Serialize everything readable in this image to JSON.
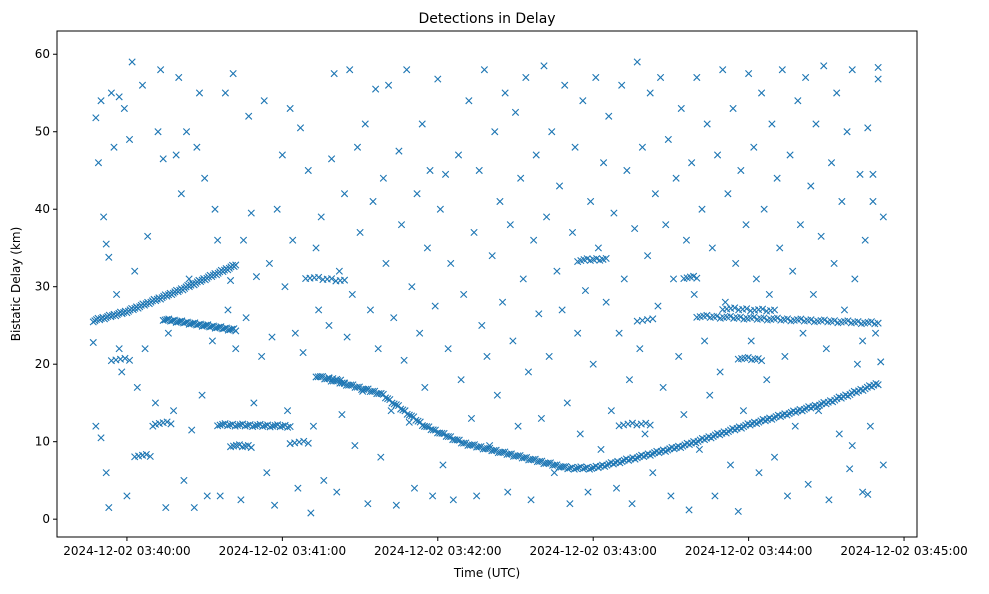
{
  "chart_data": {
    "type": "scatter",
    "title": "Detections in Delay",
    "xlabel": "Time (UTC)",
    "ylabel": "Bistatic Delay (km)",
    "x_units": "seconds after 2024-12-02 03:40:00",
    "xlim": [
      -27,
      305
    ],
    "ylim": [
      -2.3,
      63
    ],
    "grid": false,
    "marker": "x",
    "color": "#1f77b4",
    "x_ticks": [
      {
        "value": 0,
        "label": "2024-12-02 03:40:00"
      },
      {
        "value": 60,
        "label": "2024-12-02 03:41:00"
      },
      {
        "value": 120,
        "label": "2024-12-02 03:42:00"
      },
      {
        "value": 180,
        "label": "2024-12-02 03:43:00"
      },
      {
        "value": 240,
        "label": "2024-12-02 03:44:00"
      },
      {
        "value": 300,
        "label": "2024-12-02 03:45:00"
      }
    ],
    "y_ticks": [
      {
        "value": 0,
        "label": "0"
      },
      {
        "value": 10,
        "label": "10"
      },
      {
        "value": 20,
        "label": "20"
      },
      {
        "value": 30,
        "label": "30"
      },
      {
        "value": 40,
        "label": "40"
      },
      {
        "value": 50,
        "label": "50"
      },
      {
        "value": 60,
        "label": "60"
      }
    ],
    "tracks": [
      {
        "anchors": [
          [
            -13,
            25.6
          ],
          [
            0,
            26.8
          ],
          [
            20,
            29.5
          ],
          [
            42,
            32.8
          ]
        ],
        "count": 90
      },
      {
        "anchors": [
          [
            73,
            18.5
          ],
          [
            98,
            16.2
          ],
          [
            115,
            12
          ],
          [
            130,
            9.8
          ],
          [
            150,
            8.2
          ],
          [
            170,
            6.6
          ],
          [
            180,
            6.6
          ],
          [
            195,
            7.8
          ],
          [
            215,
            9.5
          ],
          [
            240,
            12.2
          ],
          [
            270,
            15
          ],
          [
            290,
            17.5
          ]
        ],
        "count": 260
      },
      {
        "anchors": [
          [
            14,
            25.8
          ],
          [
            42,
            24.4
          ]
        ],
        "count": 40
      },
      {
        "anchors": [
          [
            35,
            12.2
          ],
          [
            63,
            12
          ]
        ],
        "count": 30
      },
      {
        "anchors": [
          [
            220,
            26.2
          ],
          [
            290,
            25.3
          ]
        ],
        "count": 55
      },
      {
        "anchors": [
          [
            230,
            27.2
          ],
          [
            250,
            26.9
          ]
        ],
        "count": 14
      },
      {
        "anchors": [
          [
            236,
            20.8
          ],
          [
            245,
            20.6
          ]
        ],
        "count": 8
      },
      {
        "anchors": [
          [
            174,
            33.4
          ],
          [
            185,
            33.6
          ]
        ],
        "count": 10
      },
      {
        "anchors": [
          [
            69,
            31.2
          ],
          [
            84,
            30.8
          ]
        ],
        "count": 10
      },
      {
        "anchors": [
          [
            40,
            9.5
          ],
          [
            48,
            9.4
          ]
        ],
        "count": 8
      },
      {
        "anchors": [
          [
            3,
            8.2
          ],
          [
            9,
            8.2
          ]
        ],
        "count": 5
      },
      {
        "anchors": [
          [
            11,
            12.4
          ],
          [
            17,
            12.4
          ]
        ],
        "count": 5
      },
      {
        "anchors": [
          [
            -6,
            20.6
          ],
          [
            1,
            20.6
          ]
        ],
        "count": 5
      },
      {
        "anchors": [
          [
            63,
            9.9
          ],
          [
            70,
            9.9
          ]
        ],
        "count": 5
      },
      {
        "anchors": [
          [
            197,
            25.7
          ],
          [
            203,
            25.7
          ]
        ],
        "count": 4
      },
      {
        "anchors": [
          [
            190,
            12.2
          ],
          [
            202,
            12.3
          ]
        ],
        "count": 8
      },
      {
        "anchors": [
          [
            215,
            31.2
          ],
          [
            220,
            31.2
          ]
        ],
        "count": 5
      },
      {
        "anchors": [
          [
            78,
            18.4
          ],
          [
            84,
            17.6
          ]
        ],
        "count": 5
      }
    ],
    "points": [
      [
        -12,
        51.8
      ],
      [
        -11,
        46
      ],
      [
        -10,
        54
      ],
      [
        -9,
        39
      ],
      [
        -8,
        35.5
      ],
      [
        -7,
        33.8
      ],
      [
        -6,
        55
      ],
      [
        -4,
        29
      ],
      [
        -3,
        22
      ],
      [
        -2,
        19
      ],
      [
        -13,
        22.8
      ],
      [
        -12,
        12
      ],
      [
        -10,
        10.5
      ],
      [
        -8,
        6
      ],
      [
        -7,
        1.5
      ],
      [
        -5,
        48
      ],
      [
        -3,
        54.5
      ],
      [
        -1,
        53
      ],
      [
        0,
        3
      ],
      [
        1,
        49
      ],
      [
        2,
        59
      ],
      [
        3,
        32
      ],
      [
        4,
        17
      ],
      [
        6,
        56
      ],
      [
        7,
        22
      ],
      [
        8,
        36.5
      ],
      [
        10,
        12
      ],
      [
        11,
        15
      ],
      [
        12,
        50
      ],
      [
        13,
        58
      ],
      [
        14,
        46.5
      ],
      [
        15,
        1.5
      ],
      [
        16,
        24
      ],
      [
        18,
        14
      ],
      [
        19,
        47
      ],
      [
        20,
        57
      ],
      [
        21,
        42
      ],
      [
        22,
        5
      ],
      [
        23,
        50
      ],
      [
        24,
        31
      ],
      [
        25,
        11.5
      ],
      [
        26,
        1.5
      ],
      [
        27,
        48
      ],
      [
        28,
        55
      ],
      [
        29,
        16
      ],
      [
        30,
        44
      ],
      [
        31,
        3
      ],
      [
        33,
        23
      ],
      [
        34,
        40
      ],
      [
        35,
        36
      ],
      [
        36,
        3
      ],
      [
        38,
        55
      ],
      [
        39,
        27
      ],
      [
        40,
        30.8
      ],
      [
        41,
        57.5
      ],
      [
        42,
        22
      ],
      [
        44,
        2.5
      ],
      [
        45,
        36
      ],
      [
        46,
        26
      ],
      [
        47,
        52
      ],
      [
        48,
        39.5
      ],
      [
        49,
        15
      ],
      [
        50,
        31.3
      ],
      [
        52,
        21
      ],
      [
        53,
        54
      ],
      [
        54,
        6
      ],
      [
        55,
        33
      ],
      [
        56,
        23.5
      ],
      [
        57,
        1.8
      ],
      [
        58,
        40
      ],
      [
        60,
        47
      ],
      [
        61,
        30
      ],
      [
        62,
        14
      ],
      [
        63,
        53
      ],
      [
        64,
        36
      ],
      [
        65,
        24
      ],
      [
        66,
        4
      ],
      [
        67,
        50.5
      ],
      [
        68,
        21.5
      ],
      [
        70,
        45
      ],
      [
        71,
        0.8
      ],
      [
        72,
        12
      ],
      [
        73,
        35
      ],
      [
        74,
        27
      ],
      [
        75,
        39
      ],
      [
        76,
        5
      ],
      [
        78,
        25
      ],
      [
        79,
        46.5
      ],
      [
        80,
        57.5
      ],
      [
        81,
        3.5
      ],
      [
        82,
        32
      ],
      [
        83,
        13.5
      ],
      [
        84,
        42
      ],
      [
        85,
        23.5
      ],
      [
        86,
        58
      ],
      [
        87,
        29
      ],
      [
        88,
        9.5
      ],
      [
        89,
        48
      ],
      [
        90,
        37
      ],
      [
        91,
        16.5
      ],
      [
        92,
        51
      ],
      [
        93,
        2
      ],
      [
        94,
        27
      ],
      [
        95,
        41
      ],
      [
        96,
        55.5
      ],
      [
        97,
        22
      ],
      [
        98,
        8
      ],
      [
        99,
        44
      ],
      [
        100,
        33
      ],
      [
        101,
        56
      ],
      [
        102,
        14
      ],
      [
        103,
        26
      ],
      [
        104,
        1.8
      ],
      [
        105,
        47.5
      ],
      [
        106,
        38
      ],
      [
        107,
        20.5
      ],
      [
        108,
        58
      ],
      [
        109,
        12.5
      ],
      [
        110,
        30
      ],
      [
        111,
        4
      ],
      [
        112,
        42
      ],
      [
        113,
        24
      ],
      [
        114,
        51
      ],
      [
        115,
        17
      ],
      [
        116,
        35
      ],
      [
        117,
        45
      ],
      [
        118,
        3
      ],
      [
        119,
        27.5
      ],
      [
        120,
        56.8
      ],
      [
        121,
        40
      ],
      [
        122,
        7
      ],
      [
        123,
        44.5
      ],
      [
        124,
        22
      ],
      [
        125,
        33
      ],
      [
        126,
        2.5
      ],
      [
        128,
        47
      ],
      [
        129,
        18
      ],
      [
        130,
        29
      ],
      [
        132,
        54
      ],
      [
        133,
        13
      ],
      [
        134,
        37
      ],
      [
        135,
        3
      ],
      [
        136,
        45
      ],
      [
        137,
        25
      ],
      [
        138,
        58
      ],
      [
        139,
        21
      ],
      [
        140,
        9.5
      ],
      [
        141,
        34
      ],
      [
        142,
        50
      ],
      [
        143,
        16
      ],
      [
        144,
        41
      ],
      [
        145,
        28
      ],
      [
        146,
        55
      ],
      [
        147,
        3.5
      ],
      [
        148,
        38
      ],
      [
        149,
        23
      ],
      [
        150,
        52.5
      ],
      [
        151,
        12
      ],
      [
        152,
        44
      ],
      [
        153,
        31
      ],
      [
        154,
        57
      ],
      [
        155,
        19
      ],
      [
        156,
        2.5
      ],
      [
        157,
        36
      ],
      [
        158,
        47
      ],
      [
        159,
        26.5
      ],
      [
        160,
        13
      ],
      [
        161,
        58.5
      ],
      [
        162,
        39
      ],
      [
        163,
        21
      ],
      [
        164,
        50
      ],
      [
        165,
        6
      ],
      [
        166,
        32
      ],
      [
        167,
        43
      ],
      [
        168,
        27
      ],
      [
        169,
        56
      ],
      [
        170,
        15
      ],
      [
        171,
        2
      ],
      [
        172,
        37
      ],
      [
        173,
        48
      ],
      [
        174,
        24
      ],
      [
        175,
        11
      ],
      [
        176,
        54
      ],
      [
        177,
        29.5
      ],
      [
        178,
        3.5
      ],
      [
        179,
        41
      ],
      [
        180,
        20
      ],
      [
        181,
        57
      ],
      [
        182,
        35
      ],
      [
        183,
        9
      ],
      [
        184,
        46
      ],
      [
        185,
        28
      ],
      [
        186,
        52
      ],
      [
        187,
        14
      ],
      [
        188,
        39.5
      ],
      [
        189,
        4
      ],
      [
        190,
        24
      ],
      [
        191,
        56
      ],
      [
        192,
        31
      ],
      [
        193,
        45
      ],
      [
        194,
        18
      ],
      [
        195,
        2
      ],
      [
        196,
        37.5
      ],
      [
        197,
        59
      ],
      [
        198,
        22
      ],
      [
        199,
        48
      ],
      [
        200,
        11
      ],
      [
        201,
        34
      ],
      [
        202,
        55
      ],
      [
        203,
        6
      ],
      [
        204,
        42
      ],
      [
        205,
        27.5
      ],
      [
        206,
        57
      ],
      [
        207,
        17
      ],
      [
        208,
        38
      ],
      [
        209,
        49
      ],
      [
        210,
        3
      ],
      [
        211,
        31
      ],
      [
        212,
        44
      ],
      [
        213,
        21
      ],
      [
        214,
        53
      ],
      [
        215,
        13.5
      ],
      [
        216,
        36
      ],
      [
        217,
        1.2
      ],
      [
        218,
        46
      ],
      [
        219,
        29
      ],
      [
        220,
        57
      ],
      [
        221,
        9
      ],
      [
        222,
        40
      ],
      [
        223,
        23
      ],
      [
        224,
        51
      ],
      [
        225,
        16
      ],
      [
        226,
        35
      ],
      [
        227,
        3
      ],
      [
        228,
        47
      ],
      [
        229,
        19
      ],
      [
        230,
        58
      ],
      [
        231,
        28
      ],
      [
        232,
        42
      ],
      [
        233,
        7
      ],
      [
        234,
        53
      ],
      [
        235,
        33
      ],
      [
        236,
        1
      ],
      [
        237,
        45
      ],
      [
        238,
        14
      ],
      [
        239,
        38
      ],
      [
        240,
        57.5
      ],
      [
        241,
        23
      ],
      [
        242,
        48
      ],
      [
        243,
        31
      ],
      [
        244,
        6
      ],
      [
        245,
        55
      ],
      [
        246,
        40
      ],
      [
        247,
        18
      ],
      [
        248,
        29
      ],
      [
        249,
        51
      ],
      [
        250,
        8
      ],
      [
        251,
        44
      ],
      [
        252,
        35
      ],
      [
        253,
        58
      ],
      [
        254,
        21
      ],
      [
        255,
        3
      ],
      [
        256,
        47
      ],
      [
        257,
        32
      ],
      [
        258,
        12
      ],
      [
        259,
        54
      ],
      [
        260,
        38
      ],
      [
        261,
        24
      ],
      [
        262,
        57
      ],
      [
        263,
        4.5
      ],
      [
        264,
        43
      ],
      [
        265,
        29
      ],
      [
        266,
        51
      ],
      [
        267,
        14
      ],
      [
        268,
        36.5
      ],
      [
        269,
        58.5
      ],
      [
        270,
        22
      ],
      [
        271,
        2.5
      ],
      [
        272,
        46
      ],
      [
        273,
        33
      ],
      [
        274,
        55
      ],
      [
        275,
        11
      ],
      [
        276,
        41
      ],
      [
        277,
        27
      ],
      [
        278,
        50
      ],
      [
        279,
        6.5
      ],
      [
        280,
        58
      ],
      [
        281,
        31
      ],
      [
        282,
        20
      ],
      [
        283,
        44.5
      ],
      [
        284,
        3.5
      ],
      [
        285,
        36
      ],
      [
        286,
        50.5
      ],
      [
        287,
        12
      ],
      [
        288,
        41
      ],
      [
        289,
        24
      ],
      [
        290,
        56.8
      ],
      [
        291,
        20.3
      ],
      [
        292,
        39
      ],
      [
        292,
        7
      ],
      [
        290,
        58.3
      ],
      [
        288,
        44.5
      ],
      [
        286,
        3.2
      ],
      [
        284,
        23
      ],
      [
        280,
        9.5
      ]
    ]
  }
}
